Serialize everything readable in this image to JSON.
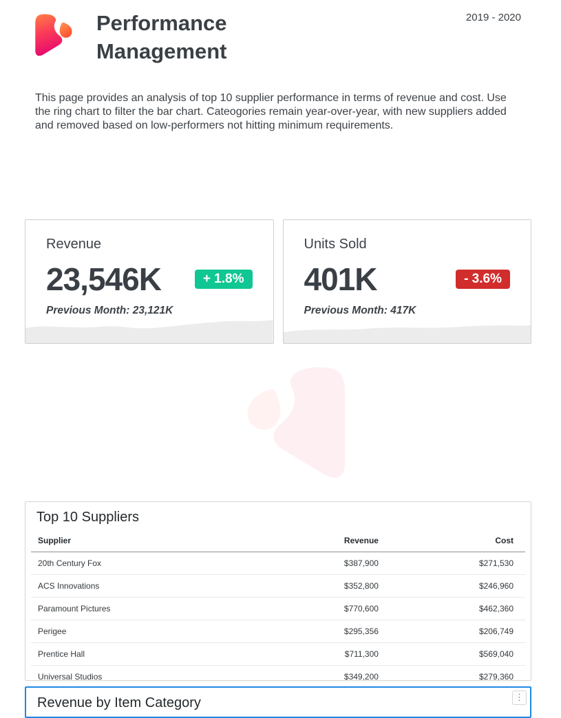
{
  "header": {
    "title": "Performance Management",
    "year_range": "2019 - 2020",
    "logo_name": "brand-logo"
  },
  "description": "This page provides an analysis of top 10 supplier performance in terms of revenue and cost. Use the ring chart to filter the bar chart. Cateogories remain year-over-year, with new suppliers added and removed based on low-performers not hitting minimum requirements.",
  "kpis": [
    {
      "title": "Revenue",
      "value": "23,546K",
      "delta": "+ 1.8%",
      "delta_direction": "up",
      "previous": "Previous Month: 23,121K"
    },
    {
      "title": "Units Sold",
      "value": "401K",
      "delta": "- 3.6%",
      "delta_direction": "down",
      "previous": "Previous Month: 417K"
    }
  ],
  "suppliers": {
    "title": "Top 10 Suppliers",
    "columns": [
      "Supplier",
      "Revenue",
      "Cost"
    ],
    "rows": [
      [
        "20th Century Fox",
        "$387,900",
        "$271,530"
      ],
      [
        "ACS Innovations",
        "$352,800",
        "$246,960"
      ],
      [
        "Paramount Pictures",
        "$770,600",
        "$462,360"
      ],
      [
        "Perigee",
        "$295,356",
        "$206,749"
      ],
      [
        "Prentice Hall",
        "$711,300",
        "$569,040"
      ],
      [
        "Universal Studios",
        "$349,200",
        "$279,360"
      ]
    ]
  },
  "category_section": {
    "title": "Revenue by Item Category",
    "menu_icon": "kebab-menu-icon"
  },
  "colors": {
    "positive": "#10c692",
    "negative": "#d02d2c",
    "selection_blue": "#1e88e5",
    "wave_gray": "#ececec"
  }
}
